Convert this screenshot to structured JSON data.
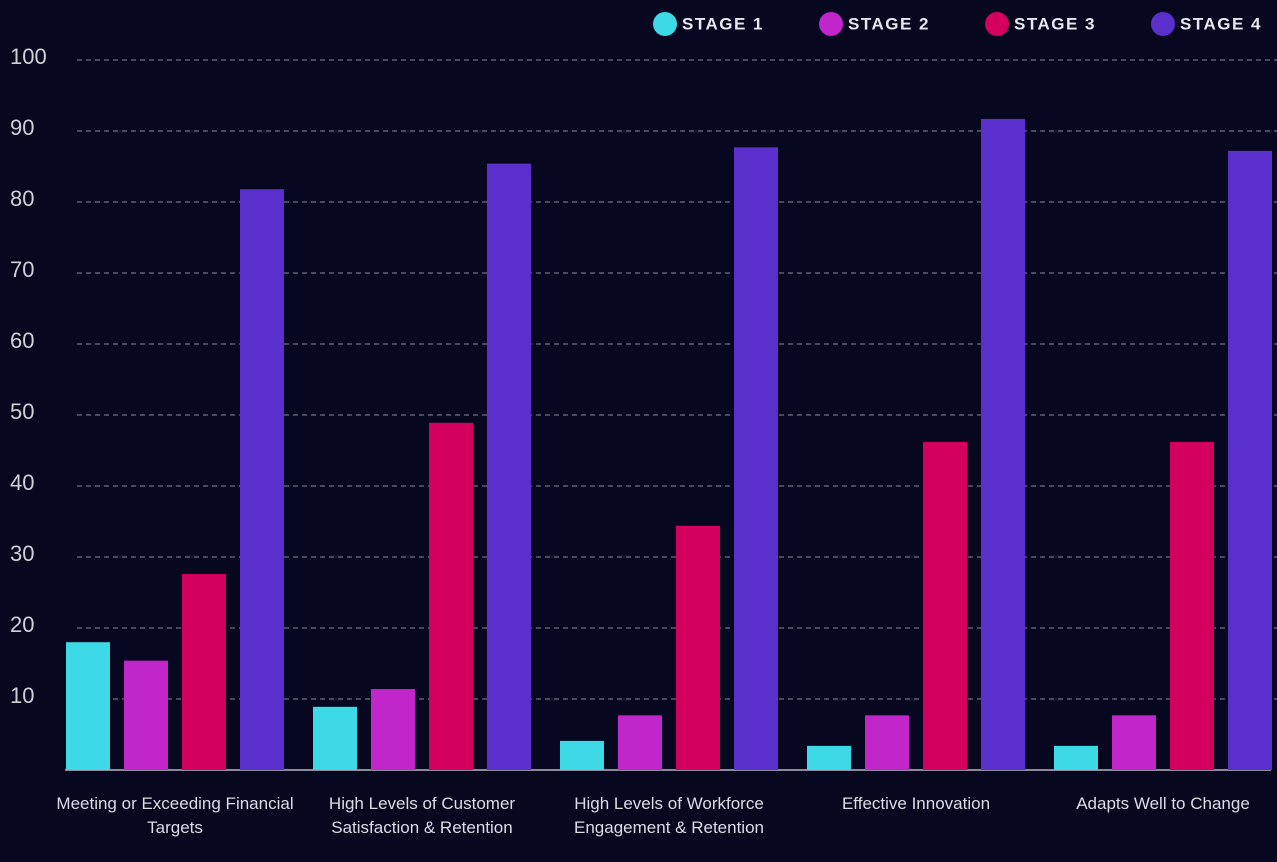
{
  "chart_data": {
    "type": "bar",
    "categories": [
      "Meeting or Exceeding Financial Targets",
      "High Levels of Customer Satisfaction & Retention",
      "High Levels of Workforce Engagement & Retention",
      "Effective Innovation",
      "Adapts Well to Change"
    ],
    "series": [
      {
        "name": "STAGE 1",
        "color": "#3dd9e6",
        "values": [
          18.0,
          8.9,
          4.1,
          3.4,
          3.4
        ]
      },
      {
        "name": "STAGE 2",
        "color": "#c026c9",
        "values": [
          15.4,
          11.4,
          7.7,
          7.7,
          7.7
        ]
      },
      {
        "name": "STAGE 3",
        "color": "#d4005f",
        "values": [
          27.6,
          48.9,
          34.4,
          46.2,
          46.2
        ]
      },
      {
        "name": "STAGE 4",
        "color": "#5b2fcc",
        "values": [
          81.8,
          85.4,
          87.7,
          91.7,
          87.2
        ]
      }
    ],
    "ylim": [
      0,
      100
    ],
    "yticks": [
      10,
      20,
      30,
      40,
      50,
      60,
      70,
      80,
      90,
      100
    ],
    "grid": true,
    "legend": "top-right"
  }
}
